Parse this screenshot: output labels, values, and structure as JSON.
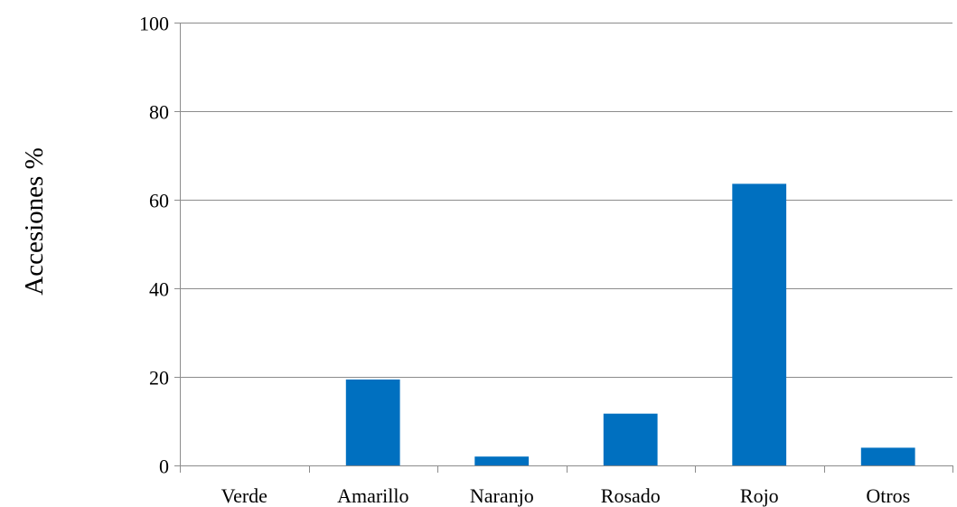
{
  "chart_data": {
    "type": "bar",
    "title": "",
    "xlabel": "",
    "ylabel": "Accesiones %",
    "categories": [
      "Verde",
      "Amarillo",
      "Naranjo",
      "Rosado",
      "Rojo",
      "Otros"
    ],
    "series": [
      {
        "values": [
          0,
          19.4,
          2.0,
          11.7,
          63.6,
          4.0
        ]
      }
    ],
    "ylim": [
      0,
      100
    ],
    "yticks": [
      0,
      20,
      40,
      60,
      80,
      100
    ],
    "grid": true,
    "legend": "none",
    "bar_color": "#0070C0",
    "grid_color": "#8c8c8c",
    "axis_color": "#8c8c8c"
  }
}
